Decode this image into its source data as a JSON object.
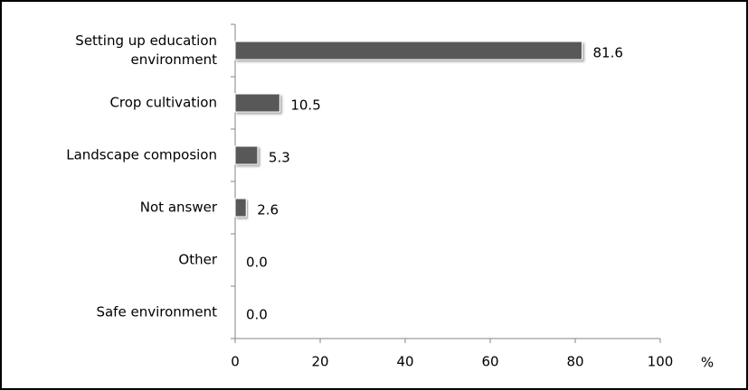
{
  "chart_data": {
    "type": "bar",
    "orientation": "horizontal",
    "categories": [
      "Setting up education environment",
      "Crop cultivation",
      "Landscape composion",
      "Not answer",
      "Other",
      "Safe environment"
    ],
    "values": [
      81.6,
      10.5,
      5.3,
      2.6,
      0,
      0
    ],
    "value_labels": [
      "81.6",
      "10.5",
      "5.3",
      "2.6",
      "0.0",
      "0.0"
    ],
    "color": "#595959",
    "xlabel": "%",
    "xlim": [
      0,
      100
    ],
    "xticks": [
      0,
      20,
      40,
      60,
      80,
      100
    ],
    "grid": false
  }
}
